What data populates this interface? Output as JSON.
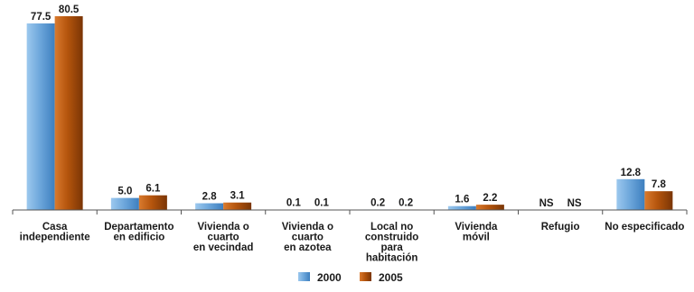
{
  "chart_data": {
    "type": "bar",
    "title": "",
    "xlabel": "",
    "ylabel": "",
    "ylim": [
      0,
      80.5
    ],
    "grid": false,
    "legend_position": "bottom",
    "categories": [
      [
        "Casa",
        "independiente"
      ],
      [
        "Departamento",
        "en edificio"
      ],
      [
        "Vivienda o",
        "cuarto",
        "en vecindad"
      ],
      [
        "Vivienda o",
        "cuarto",
        "en azotea"
      ],
      [
        "Local no",
        "construido",
        "para",
        "habitación"
      ],
      [
        "Vivienda",
        "móvil"
      ],
      [
        "Refugio"
      ],
      [
        "No especificado"
      ]
    ],
    "series": [
      {
        "name": "2000",
        "color": "#6fa8dc",
        "values": [
          77.5,
          5.0,
          2.8,
          0.1,
          0.2,
          1.6,
          null,
          12.8
        ],
        "labels": [
          "77.5",
          "5.0",
          "2.8",
          "0.1",
          "0.2",
          "1.6",
          "NS",
          "12.8"
        ]
      },
      {
        "name": "2005",
        "color": "#b5550d",
        "values": [
          80.5,
          6.1,
          3.1,
          0.1,
          0.2,
          2.2,
          null,
          7.8
        ],
        "labels": [
          "80.5",
          "6.1",
          "3.1",
          "0.1",
          "0.2",
          "2.2",
          "NS",
          "7.8"
        ]
      }
    ]
  }
}
